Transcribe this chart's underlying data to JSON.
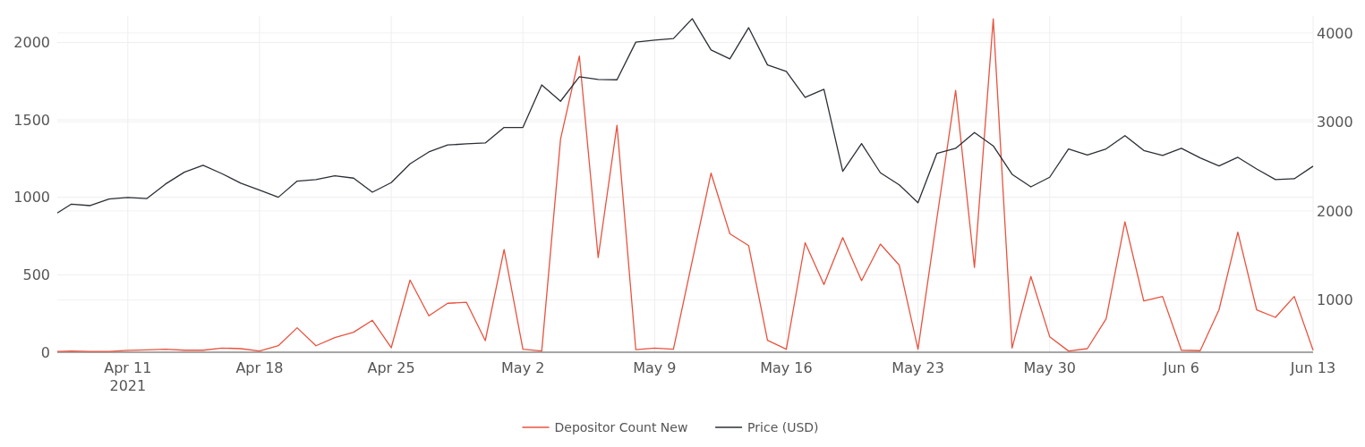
{
  "chart_data": {
    "type": "line",
    "x": [
      "2021-04-07T06:00",
      "2021-04-08",
      "2021-04-09",
      "2021-04-10",
      "2021-04-11",
      "2021-04-12",
      "2021-04-13",
      "2021-04-14",
      "2021-04-15",
      "2021-04-16",
      "2021-04-17",
      "2021-04-18",
      "2021-04-19",
      "2021-04-20",
      "2021-04-21",
      "2021-04-22",
      "2021-04-23",
      "2021-04-24",
      "2021-04-25",
      "2021-04-26",
      "2021-04-27",
      "2021-04-28",
      "2021-04-29",
      "2021-04-30",
      "2021-05-01",
      "2021-05-02",
      "2021-05-03",
      "2021-05-04",
      "2021-05-05",
      "2021-05-06",
      "2021-05-07",
      "2021-05-08",
      "2021-05-09",
      "2021-05-10",
      "2021-05-11",
      "2021-05-12",
      "2021-05-13",
      "2021-05-14",
      "2021-05-15",
      "2021-05-16",
      "2021-05-17",
      "2021-05-18",
      "2021-05-19",
      "2021-05-20",
      "2021-05-21",
      "2021-05-22",
      "2021-05-23",
      "2021-05-24",
      "2021-05-25",
      "2021-05-26",
      "2021-05-27",
      "2021-05-28",
      "2021-05-29",
      "2021-05-30",
      "2021-05-31",
      "2021-06-01",
      "2021-06-02",
      "2021-06-03",
      "2021-06-04",
      "2021-06-05",
      "2021-06-06",
      "2021-06-07",
      "2021-06-08",
      "2021-06-09",
      "2021-06-10",
      "2021-06-11",
      "2021-06-12",
      "2021-06-13"
    ],
    "series": [
      {
        "name": "Depositor Count New",
        "color": "#e8533f",
        "values": [
          5,
          8,
          5,
          5,
          12,
          15,
          19,
          13,
          13,
          27,
          23,
          8,
          42,
          158,
          42,
          94,
          129,
          206,
          29,
          466,
          235,
          316,
          322,
          75,
          663,
          19,
          8,
          1376,
          1912,
          611,
          1465,
          17,
          27,
          19,
          590,
          1156,
          765,
          688,
          77,
          19,
          707,
          437,
          740,
          462,
          698,
          563,
          19,
          860,
          1690,
          547,
          2152,
          27,
          489,
          100,
          8,
          23,
          216,
          842,
          331,
          360,
          13,
          10,
          274,
          775,
          274,
          225,
          360,
          13
        ]
      },
      {
        "name": "Price (USD)",
        "color": "#2b2f36",
        "axis": "y2",
        "values": [
          1977,
          2077,
          2060,
          2134,
          2151,
          2138,
          2302,
          2435,
          2513,
          2419,
          2312,
          2234,
          2154,
          2335,
          2352,
          2395,
          2369,
          2211,
          2319,
          2530,
          2663,
          2741,
          2754,
          2764,
          2938,
          2938,
          3417,
          3233,
          3508,
          3477,
          3474,
          3897,
          3920,
          3937,
          4161,
          3809,
          3709,
          4060,
          3641,
          3568,
          3276,
          3367,
          2445,
          2757,
          2429,
          2294,
          2093,
          2646,
          2704,
          2881,
          2731,
          2412,
          2271,
          2379,
          2697,
          2630,
          2697,
          2847,
          2680,
          2623,
          2704,
          2596,
          2506,
          2603,
          2472,
          2352,
          2362,
          2503
        ]
      }
    ],
    "xlim": [
      "2021-04-07T06:00",
      "2021-06-13"
    ],
    "xticks": [
      {
        "value": "2021-04-11",
        "label": "Apr 11\n2021"
      },
      {
        "value": "2021-04-18",
        "label": "Apr 18"
      },
      {
        "value": "2021-04-25",
        "label": "Apr 25"
      },
      {
        "value": "2021-05-02",
        "label": "May 2"
      },
      {
        "value": "2021-05-09",
        "label": "May 9"
      },
      {
        "value": "2021-05-16",
        "label": "May 16"
      },
      {
        "value": "2021-05-23",
        "label": "May 23"
      },
      {
        "value": "2021-05-30",
        "label": "May 30"
      },
      {
        "value": "2021-06-06",
        "label": "Jun 6"
      },
      {
        "value": "2021-06-13",
        "label": "Jun 13"
      }
    ],
    "ylim": [
      0,
      2170
    ],
    "yticks": [
      0,
      500,
      1000,
      1500,
      2000
    ],
    "y2lim": [
      412,
      4190
    ],
    "y2ticks": [
      1000,
      2000,
      3000,
      4000
    ],
    "grid": true,
    "legend": "bottom",
    "line_style": "solid"
  }
}
